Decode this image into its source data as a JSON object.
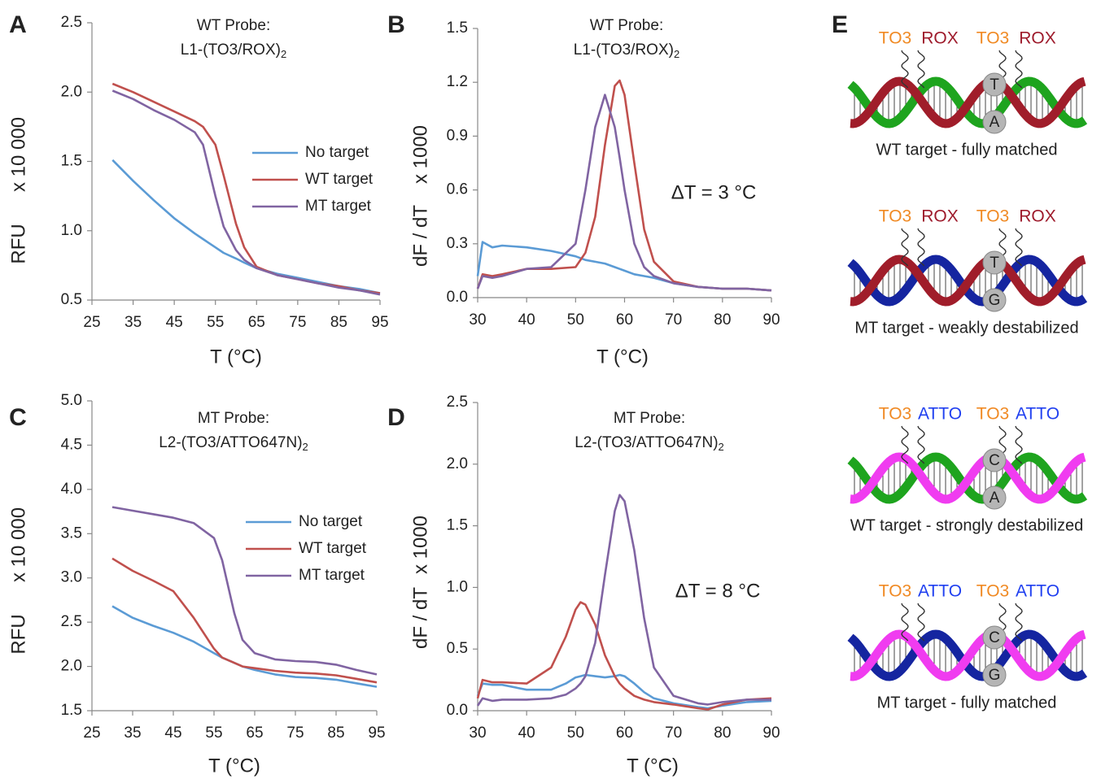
{
  "chart_data": [
    {
      "type": "line",
      "panel": "A",
      "title": "WT Probe:",
      "subtitle": "L1-(TO3/ROX)",
      "subtitle_subscript": "2",
      "ylabel": "RFU",
      "yunit": "x 10 000",
      "xlabel": "T (°C)",
      "legend": "center right",
      "x": [
        30,
        35,
        40,
        45,
        50,
        52,
        55,
        57,
        60,
        62,
        65,
        70,
        75,
        80,
        85,
        90,
        95
      ],
      "series": [
        {
          "name": "No target",
          "color": "#5b9bd5",
          "values": [
            1.51,
            1.36,
            1.22,
            1.09,
            0.98,
            0.94,
            0.88,
            0.84,
            0.8,
            0.77,
            0.73,
            0.69,
            0.66,
            0.63,
            0.6,
            0.58,
            0.55
          ]
        },
        {
          "name": "WT target",
          "color": "#c0504d",
          "values": [
            2.06,
            2.0,
            1.93,
            1.86,
            1.79,
            1.75,
            1.62,
            1.4,
            1.05,
            0.88,
            0.74,
            0.68,
            0.65,
            0.62,
            0.6,
            0.57,
            0.55
          ]
        },
        {
          "name": "MT target",
          "color": "#8064a2",
          "values": [
            2.01,
            1.95,
            1.87,
            1.8,
            1.71,
            1.62,
            1.25,
            1.03,
            0.86,
            0.79,
            0.73,
            0.68,
            0.65,
            0.62,
            0.59,
            0.57,
            0.54
          ]
        }
      ],
      "xlim": [
        25,
        95
      ],
      "xticks": [
        25,
        35,
        45,
        55,
        65,
        75,
        85,
        95
      ],
      "ylim": [
        0.5,
        2.5
      ],
      "yticks": [
        0.5,
        {
          "value": 1,
          "label": "1.0"
        },
        1.5,
        {
          "value": 2,
          "label": "2.0"
        },
        2.5
      ]
    },
    {
      "type": "line",
      "panel": "B",
      "title": "WT Probe:",
      "subtitle": "L1-(TO3/ROX)",
      "subtitle_subscript": "2",
      "ylabel": "dF / dT",
      "yunit": "x 1000",
      "xlabel": "T (°C)",
      "annotation": "ΔT = 3 °C",
      "x": [
        30,
        31,
        33,
        35,
        40,
        45,
        50,
        52,
        54,
        56,
        58,
        59,
        60,
        62,
        64,
        66,
        70,
        75,
        80,
        85,
        90
      ],
      "series": [
        {
          "name": "No target",
          "color": "#5b9bd5",
          "values": [
            0.12,
            0.31,
            0.28,
            0.29,
            0.28,
            0.26,
            0.23,
            0.21,
            0.2,
            0.19,
            0.17,
            0.16,
            0.15,
            0.13,
            0.12,
            0.11,
            0.08,
            0.06,
            0.05,
            0.05,
            0.04
          ]
        },
        {
          "name": "WT target",
          "color": "#c0504d",
          "values": [
            0.05,
            0.13,
            0.12,
            0.13,
            0.16,
            0.16,
            0.17,
            0.25,
            0.45,
            0.85,
            1.18,
            1.21,
            1.13,
            0.75,
            0.38,
            0.2,
            0.09,
            0.06,
            0.05,
            0.05,
            0.04
          ]
        },
        {
          "name": "MT target",
          "color": "#8064a2",
          "values": [
            0.05,
            0.12,
            0.11,
            0.12,
            0.16,
            0.17,
            0.3,
            0.6,
            0.95,
            1.13,
            0.95,
            0.78,
            0.6,
            0.3,
            0.17,
            0.12,
            0.08,
            0.06,
            0.05,
            0.05,
            0.04
          ]
        }
      ],
      "xlim": [
        30,
        90
      ],
      "xticks": [
        30,
        40,
        50,
        60,
        70,
        80,
        90
      ],
      "ylim": [
        0,
        1.5
      ],
      "yticks": [
        {
          "value": 0,
          "label": "0.0"
        },
        0.3,
        0.6,
        0.9,
        1.2,
        1.5
      ]
    },
    {
      "type": "line",
      "panel": "C",
      "title": "MT Probe:",
      "subtitle": "L2-(TO3/ATTO647N)",
      "subtitle_subscript": "2",
      "ylabel": "RFU",
      "yunit": "x 10 000",
      "xlabel": "T (°C)",
      "legend": "center right",
      "x": [
        30,
        35,
        40,
        45,
        50,
        55,
        57,
        60,
        62,
        65,
        70,
        75,
        80,
        85,
        90,
        95
      ],
      "series": [
        {
          "name": "No target",
          "color": "#5b9bd5",
          "values": [
            2.68,
            2.55,
            2.46,
            2.38,
            2.28,
            2.15,
            2.1,
            2.04,
            2.0,
            1.96,
            1.91,
            1.88,
            1.87,
            1.85,
            1.81,
            1.77
          ]
        },
        {
          "name": "WT target",
          "color": "#c0504d",
          "values": [
            3.22,
            3.08,
            2.97,
            2.85,
            2.55,
            2.2,
            2.1,
            2.04,
            2.0,
            1.98,
            1.95,
            1.93,
            1.92,
            1.9,
            1.86,
            1.82
          ]
        },
        {
          "name": "MT target",
          "color": "#8064a2",
          "values": [
            3.8,
            3.76,
            3.72,
            3.68,
            3.62,
            3.45,
            3.2,
            2.6,
            2.3,
            2.15,
            2.08,
            2.06,
            2.05,
            2.02,
            1.96,
            1.91
          ]
        }
      ],
      "xlim": [
        25,
        95
      ],
      "xticks": [
        25,
        35,
        45,
        55,
        65,
        75,
        85,
        95
      ],
      "ylim": [
        1.5,
        5
      ],
      "yticks": [
        1.5,
        {
          "value": 2,
          "label": "2.0"
        },
        2.5,
        {
          "value": 3,
          "label": "3.0"
        },
        3.5,
        {
          "value": 4,
          "label": "4.0"
        },
        4.5,
        {
          "value": 5,
          "label": "5.0"
        }
      ]
    },
    {
      "type": "line",
      "panel": "D",
      "title": "MT Probe:",
      "subtitle": "L2-(TO3/ATTO647N)",
      "subtitle_subscript": "2",
      "ylabel": "dF / dT",
      "yunit": "x 1000",
      "xlabel": "T (°C)",
      "annotation": "ΔT = 8 °C",
      "x": [
        30,
        31,
        33,
        35,
        40,
        45,
        48,
        50,
        51,
        52,
        54,
        56,
        58,
        59,
        60,
        62,
        64,
        66,
        70,
        75,
        77,
        80,
        85,
        90
      ],
      "series": [
        {
          "name": "No target",
          "color": "#5b9bd5",
          "values": [
            0.12,
            0.22,
            0.21,
            0.21,
            0.17,
            0.17,
            0.22,
            0.27,
            0.28,
            0.29,
            0.28,
            0.27,
            0.28,
            0.29,
            0.28,
            0.22,
            0.15,
            0.1,
            0.06,
            0.03,
            0.02,
            0.04,
            0.07,
            0.08
          ]
        },
        {
          "name": "WT target",
          "color": "#c0504d",
          "values": [
            0.1,
            0.25,
            0.23,
            0.23,
            0.22,
            0.35,
            0.6,
            0.82,
            0.88,
            0.86,
            0.7,
            0.45,
            0.28,
            0.22,
            0.18,
            0.12,
            0.09,
            0.07,
            0.05,
            0.02,
            0.01,
            0.05,
            0.09,
            0.1
          ]
        },
        {
          "name": "MT target",
          "color": "#8064a2",
          "values": [
            0.04,
            0.1,
            0.08,
            0.09,
            0.09,
            0.1,
            0.13,
            0.18,
            0.22,
            0.28,
            0.55,
            1.1,
            1.62,
            1.75,
            1.7,
            1.3,
            0.75,
            0.35,
            0.12,
            0.06,
            0.05,
            0.07,
            0.09,
            0.09
          ]
        }
      ],
      "xlim": [
        30,
        90
      ],
      "xticks": [
        30,
        40,
        50,
        60,
        70,
        80,
        90
      ],
      "ylim": [
        0,
        2.5
      ],
      "yticks": [
        {
          "value": 0,
          "label": "0.0"
        },
        0.5,
        {
          "value": 1,
          "label": "1.0"
        },
        1.5,
        {
          "value": 2,
          "label": "2.0"
        },
        2.5
      ]
    }
  ],
  "diagram": {
    "panel": "E",
    "blocks": [
      {
        "labels": [
          "TO3",
          "ROX",
          "TO3",
          "ROX"
        ],
        "label_colors": [
          "#f08a24",
          "#9e1b2c",
          "#f08a24",
          "#9e1b2c"
        ],
        "strands": [
          "#a01d2a",
          "#1ea41e"
        ],
        "top_base": "T",
        "bottom_base": "A",
        "caption": "WT target - fully matched"
      },
      {
        "labels": [
          "TO3",
          "ROX",
          "TO3",
          "ROX"
        ],
        "label_colors": [
          "#f08a24",
          "#9e1b2c",
          "#f08a24",
          "#9e1b2c"
        ],
        "strands": [
          "#a01d2a",
          "#1525a0"
        ],
        "top_base": "T",
        "bottom_base": "G",
        "caption": "MT target - weakly destabilized"
      },
      {
        "labels": [
          "TO3",
          "ATTO",
          "TO3",
          "ATTO"
        ],
        "label_colors": [
          "#f08a24",
          "#2040f0",
          "#f08a24",
          "#2040f0"
        ],
        "strands": [
          "#f03cf0",
          "#1ea41e"
        ],
        "top_base": "C",
        "bottom_base": "A",
        "caption": "WT target - strongly destabilized"
      },
      {
        "labels": [
          "TO3",
          "ATTO",
          "TO3",
          "ATTO"
        ],
        "label_colors": [
          "#f08a24",
          "#2040f0",
          "#f08a24",
          "#2040f0"
        ],
        "strands": [
          "#f03cf0",
          "#1525a0"
        ],
        "top_base": "C",
        "bottom_base": "G",
        "caption": "MT target - fully matched"
      }
    ]
  }
}
